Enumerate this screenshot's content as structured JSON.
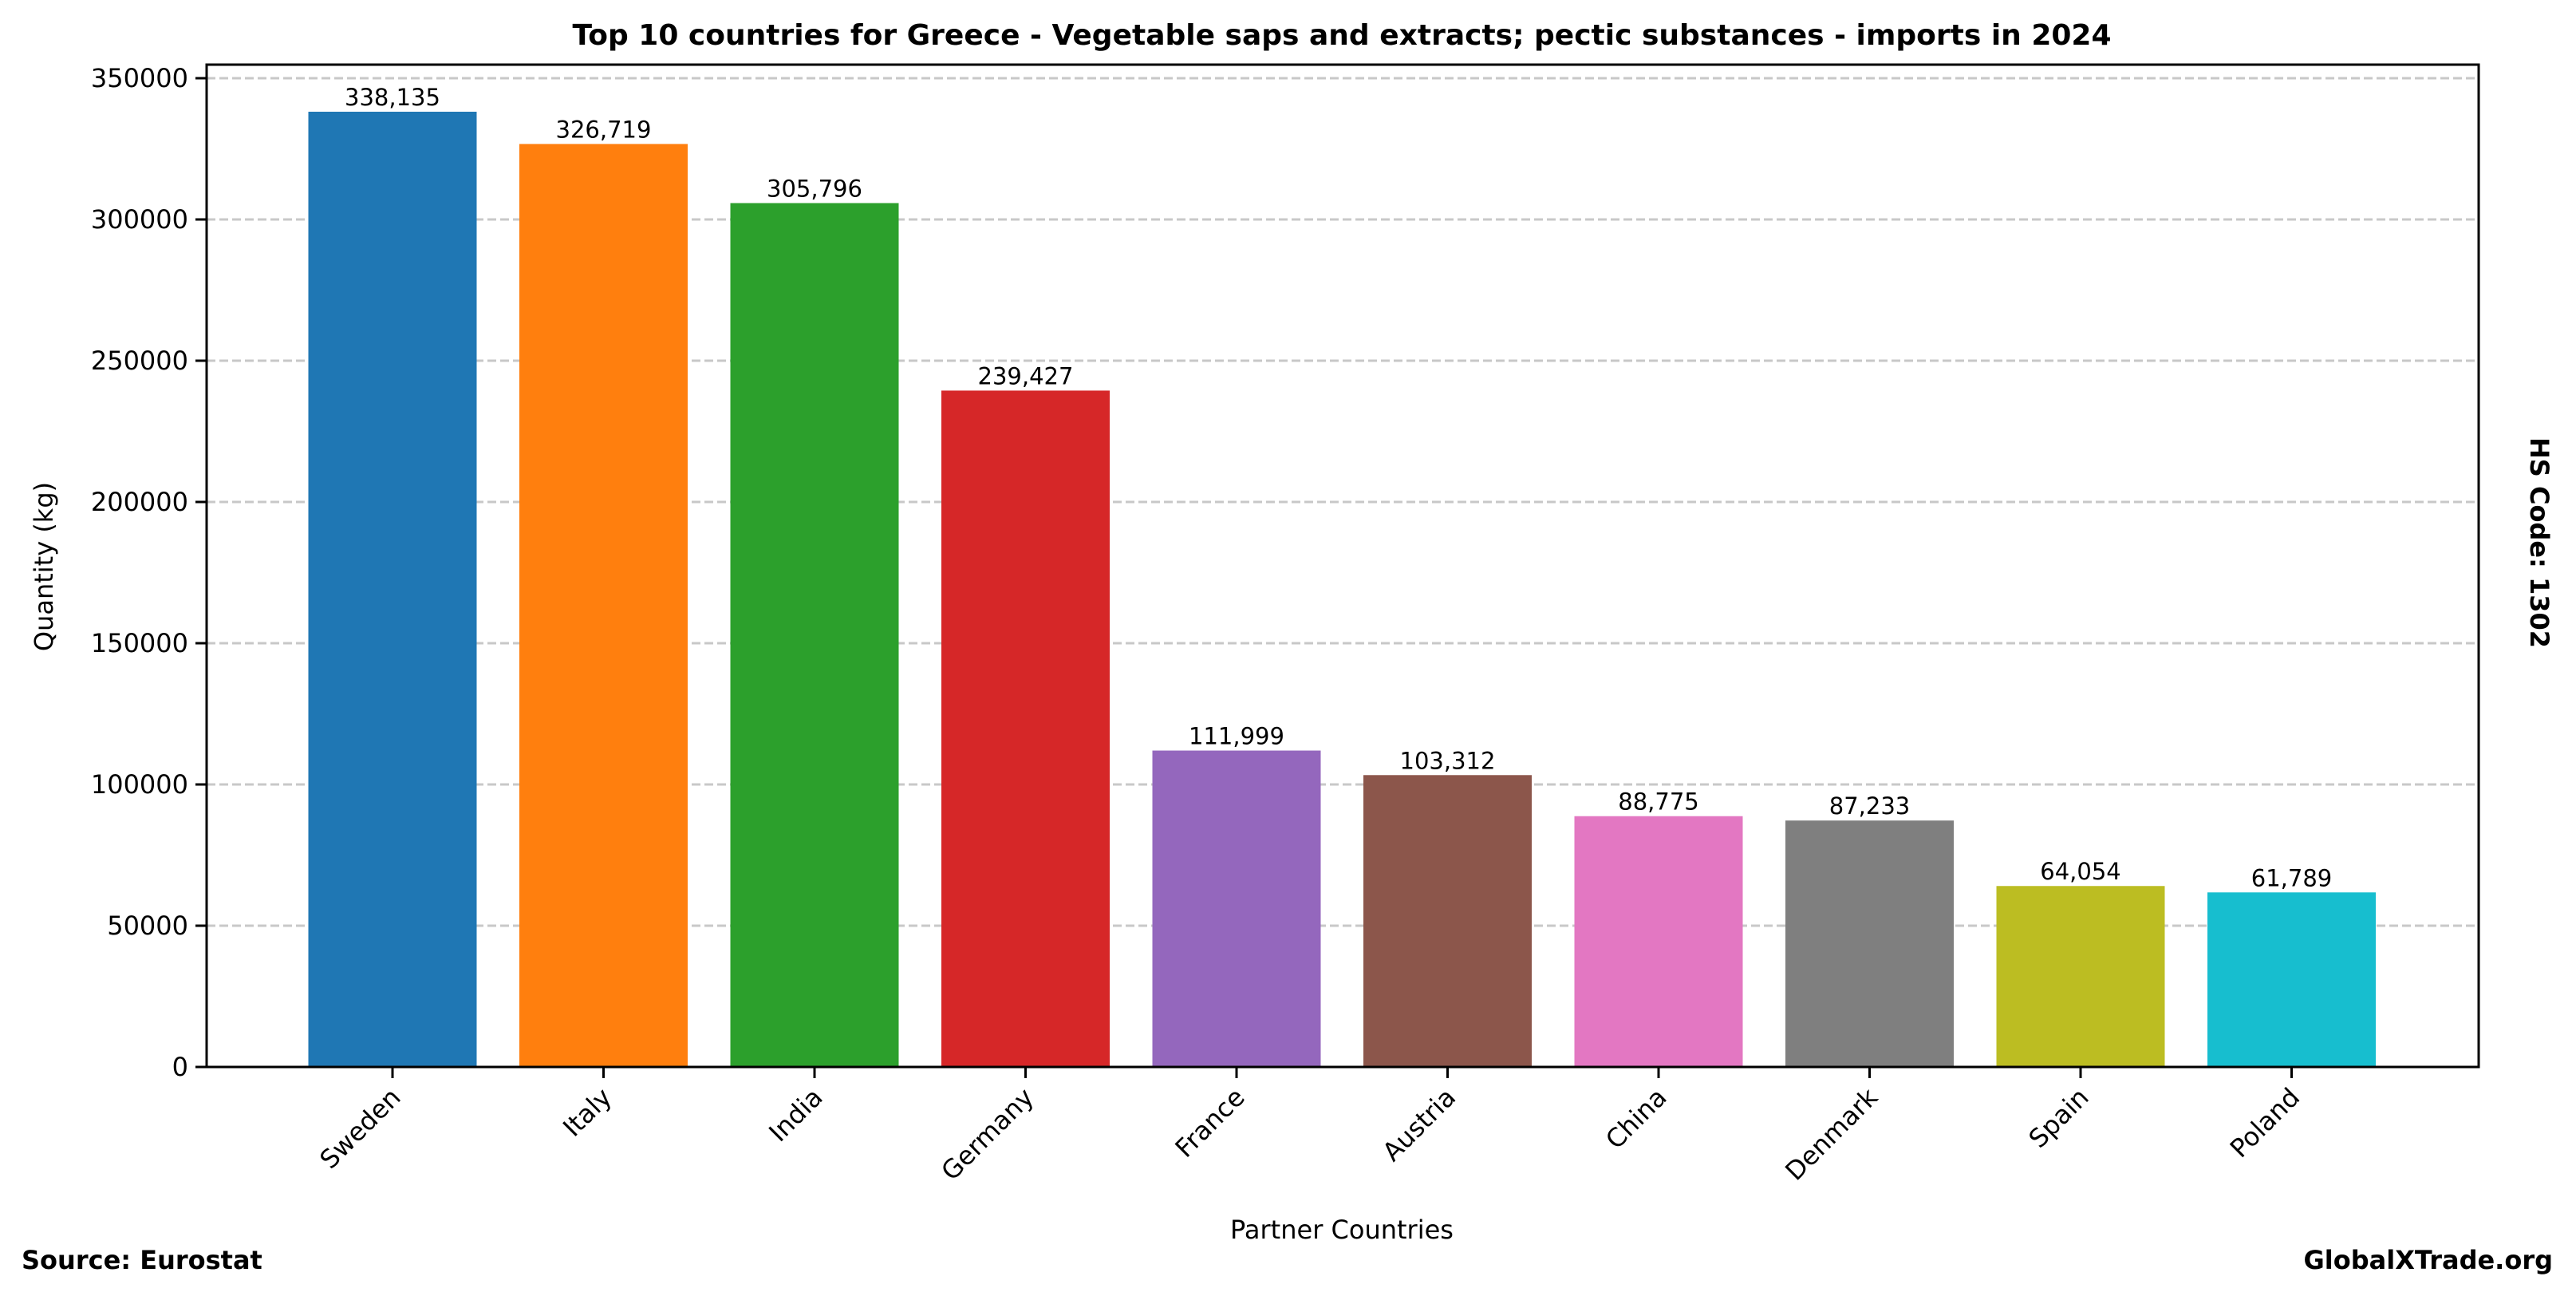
{
  "chart_data": {
    "type": "bar",
    "title": "Top 10 countries for Greece - Vegetable saps and extracts; pectic substances - imports in 2024",
    "xlabel": "Partner Countries",
    "ylabel": "Quantity (kg)",
    "categories": [
      "Sweden",
      "Italy",
      "India",
      "Germany",
      "France",
      "Austria",
      "China",
      "Denmark",
      "Spain",
      "Poland"
    ],
    "values": [
      338135,
      326719,
      305796,
      239427,
      111999,
      103312,
      88775,
      87233,
      64054,
      61789
    ],
    "value_labels": [
      "338,135",
      "326,719",
      "305,796",
      "239,427",
      "111,999",
      "103,312",
      "88,775",
      "87,233",
      "64,054",
      "61,789"
    ],
    "colors": [
      "#1f77b4",
      "#ff7f0e",
      "#2ca02c",
      "#d62728",
      "#9467bd",
      "#8c564b",
      "#e377c2",
      "#7f7f7f",
      "#bcbd22",
      "#17becf"
    ],
    "ylim": [
      0,
      355000
    ],
    "yticks": [
      0,
      50000,
      100000,
      150000,
      200000,
      250000,
      300000,
      350000
    ],
    "ytick_labels": [
      "0",
      "50000",
      "100000",
      "150000",
      "200000",
      "250000",
      "300000",
      "350000"
    ],
    "grid": "y-dashed",
    "legend": "none"
  },
  "annotations": {
    "hs_code": "HS Code: 1302",
    "source": "Source: Eurostat",
    "site": "GlobalXTrade.org"
  }
}
